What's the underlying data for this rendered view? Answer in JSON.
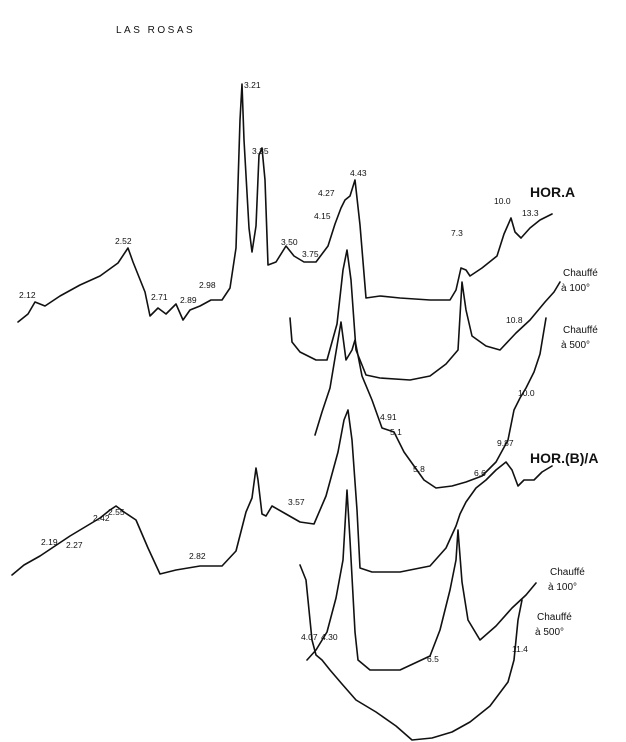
{
  "chart_data": {
    "type": "line",
    "title": "LAS ROSAS",
    "x_unit": "d (Å)",
    "series": [
      {
        "name": "HOR.A",
        "peak_labels": [
          "2.12",
          "2.52",
          "2.71",
          "2.89",
          "2.98",
          "3.21",
          "3.35",
          "3.50",
          "3.75",
          "4.15",
          "4.27",
          "4.43",
          "7.3",
          "10.0",
          "13.3"
        ],
        "peaks": [
          2.12,
          2.52,
          2.71,
          2.89,
          2.98,
          3.21,
          3.35,
          3.5,
          3.75,
          4.15,
          4.27,
          4.43,
          7.3,
          10.0,
          13.3
        ]
      },
      {
        "name": "Chauffé à 100°",
        "peak_labels": [
          "10.8"
        ],
        "peaks": [
          4.43,
          7.3,
          10.8
        ]
      },
      {
        "name": "Chauffé à 500°",
        "peak_labels": [
          "4.91",
          "5.1",
          "5.8",
          "6.6",
          "10.0"
        ],
        "peaks": [
          4.43,
          4.91,
          5.1,
          5.8,
          6.6,
          10.0
        ]
      },
      {
        "name": "HOR.(B)/A",
        "peak_labels": [
          "2.19",
          "2.27",
          "2.42",
          "2.55",
          "2.82",
          "3.57",
          "9.87"
        ],
        "peaks": [
          2.19,
          2.27,
          2.42,
          2.55,
          2.82,
          3.35,
          3.57,
          4.43,
          7.3,
          9.87
        ]
      },
      {
        "name": "Chauffé à 100°",
        "peak_labels": [],
        "peaks": [
          4.43,
          7.3
        ]
      },
      {
        "name": "Chauffé à 500°",
        "peak_labels": [
          "4.07",
          "4.30",
          "6.5",
          "11.4"
        ],
        "peaks": [
          4.07,
          4.3,
          4.43,
          6.5,
          11.4
        ]
      }
    ],
    "labels": {
      "hor_a": "HOR.A",
      "hor_b": "HOR.(B)/A",
      "chauffe": "Chauffé",
      "a100": "à 100°",
      "a500": "à 500°"
    }
  }
}
